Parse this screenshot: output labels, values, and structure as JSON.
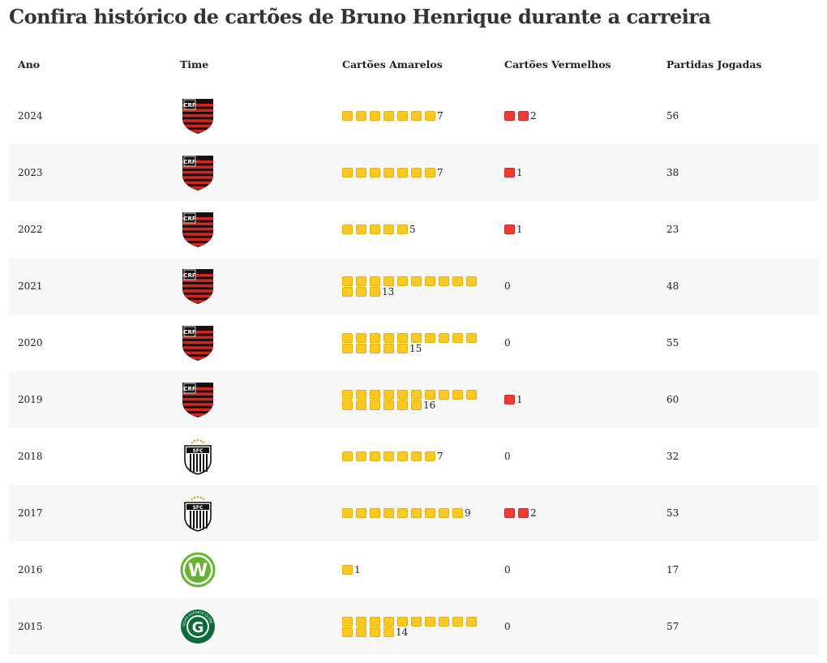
{
  "title": "Confira histórico de cartões de Bruno Henrique durante a carreira",
  "headers": {
    "ano": "Ano",
    "time": "Time",
    "amarelos": "Cartões Amarelos",
    "vermelhos": "Cartões Vermelhos",
    "partidas": "Partidas Jogadas"
  },
  "colors": {
    "yellow_card": "#fcc824",
    "red_card": "#ef3a36",
    "flamengo_red": "#d0261f",
    "flamengo_black": "#111111",
    "wolfsburg_green": "#65b32e",
    "goias_green": "#0a6b3a"
  },
  "rows": [
    {
      "ano": "2024",
      "time": "flamengo",
      "amarelos": "7",
      "yellow": 7,
      "vermelhos": "2",
      "red": 2,
      "partidas": "56"
    },
    {
      "ano": "2023",
      "time": "flamengo",
      "amarelos": "7",
      "yellow": 7,
      "vermelhos": "1",
      "red": 1,
      "partidas": "38"
    },
    {
      "ano": "2022",
      "time": "flamengo",
      "amarelos": "5",
      "yellow": 5,
      "vermelhos": "1",
      "red": 1,
      "partidas": "23"
    },
    {
      "ano": "2021",
      "time": "flamengo",
      "amarelos": "13",
      "yellow": 13,
      "vermelhos": "0",
      "red": 0,
      "partidas": "48"
    },
    {
      "ano": "2020",
      "time": "flamengo",
      "amarelos": "15",
      "yellow": 15,
      "vermelhos": "0",
      "red": 0,
      "partidas": "55"
    },
    {
      "ano": "2019",
      "time": "flamengo",
      "amarelos": "16",
      "yellow": 16,
      "vermelhos": "1",
      "red": 1,
      "partidas": "60"
    },
    {
      "ano": "2018",
      "time": "santos",
      "amarelos": "7",
      "yellow": 7,
      "vermelhos": "0",
      "red": 0,
      "partidas": "32"
    },
    {
      "ano": "2017",
      "time": "santos",
      "amarelos": "9",
      "yellow": 9,
      "vermelhos": "2",
      "red": 2,
      "partidas": "53"
    },
    {
      "ano": "2016",
      "time": "wolfsburg",
      "amarelos": "1",
      "yellow": 1,
      "vermelhos": "0",
      "red": 0,
      "partidas": "17"
    },
    {
      "ano": "2015",
      "time": "goias",
      "amarelos": "14",
      "yellow": 14,
      "vermelhos": "0",
      "red": 0,
      "partidas": "57"
    }
  ],
  "logos": {
    "flamengo": {
      "letters": "CRF"
    },
    "santos": {
      "letters": "SFC"
    },
    "wolfsburg": {
      "letters": "W"
    },
    "goias": {
      "letters": "G",
      "ring": "GOIÁS ESPORTE CLUBE"
    }
  }
}
